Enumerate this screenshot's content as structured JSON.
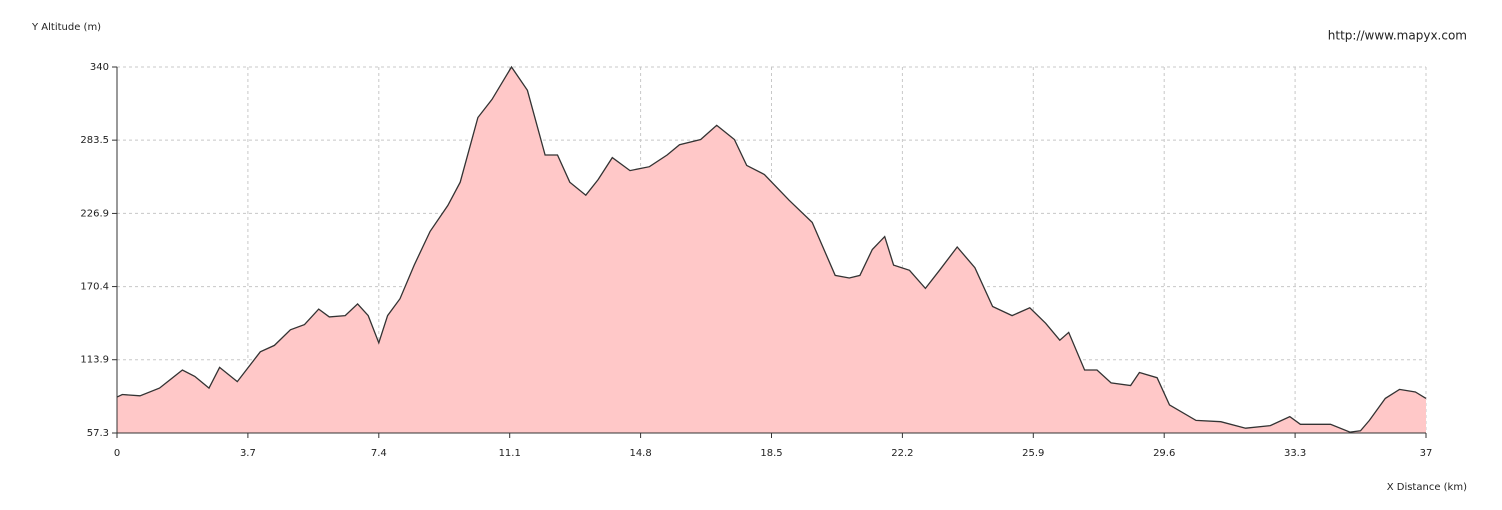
{
  "chart_data": {
    "type": "area",
    "y_label": "Y Altitude (m)",
    "x_label": "X Distance (km)",
    "source": "http://www.mapyx.com",
    "color": "#ffc8c8",
    "line_color": "#333333",
    "grid": true,
    "xlim": [
      0,
      37
    ],
    "ylim": [
      57.3,
      340
    ],
    "xticks": [
      0,
      3.7,
      7.4,
      11.1,
      14.8,
      18.5,
      22.2,
      25.9,
      29.6,
      33.3,
      37
    ],
    "yticks": [
      57.3,
      113.9,
      170.4,
      226.9,
      283.5,
      340
    ],
    "x": [
      0,
      0.15,
      0.65,
      1.2,
      1.85,
      2.2,
      2.6,
      2.9,
      3.4,
      4.05,
      4.45,
      4.9,
      5.3,
      5.7,
      6.0,
      6.45,
      6.8,
      7.1,
      7.4,
      7.65,
      8.0,
      8.4,
      8.85,
      9.35,
      9.7,
      10.2,
      10.6,
      11.15,
      11.6,
      12.1,
      12.45,
      12.8,
      13.25,
      13.6,
      14.0,
      14.5,
      15.05,
      15.55,
      15.9,
      16.5,
      16.95,
      17.45,
      17.8,
      18.3,
      19.0,
      19.65,
      20.3,
      20.7,
      21.0,
      21.35,
      21.7,
      21.95,
      22.4,
      22.85,
      23.25,
      23.75,
      24.25,
      24.75,
      25.3,
      25.8,
      26.25,
      26.65,
      26.9,
      27.35,
      27.7,
      28.1,
      28.65,
      28.9,
      29.4,
      29.75,
      30.5,
      31.2,
      31.9,
      32.6,
      33.15,
      33.45,
      34.3,
      34.85,
      35.15,
      35.4,
      35.85,
      36.25,
      36.7,
      37
    ],
    "values": [
      85,
      87,
      86,
      92,
      106,
      101,
      92,
      108,
      97,
      120,
      125,
      137,
      141,
      153,
      147,
      148,
      157,
      148,
      127,
      148,
      161,
      187,
      213,
      233,
      251,
      301,
      315,
      340,
      322,
      272,
      272,
      251,
      241,
      253,
      270,
      260,
      263,
      272,
      280,
      284,
      295,
      284,
      264,
      257,
      237,
      220,
      179,
      177,
      179,
      199,
      209,
      187,
      183,
      169,
      183,
      201,
      185,
      155,
      148,
      154,
      142,
      129,
      135,
      106,
      106,
      96,
      94,
      104,
      100,
      79,
      67,
      66,
      61,
      63,
      70,
      64,
      64,
      58,
      59,
      67,
      84,
      91,
      89,
      84
    ]
  }
}
